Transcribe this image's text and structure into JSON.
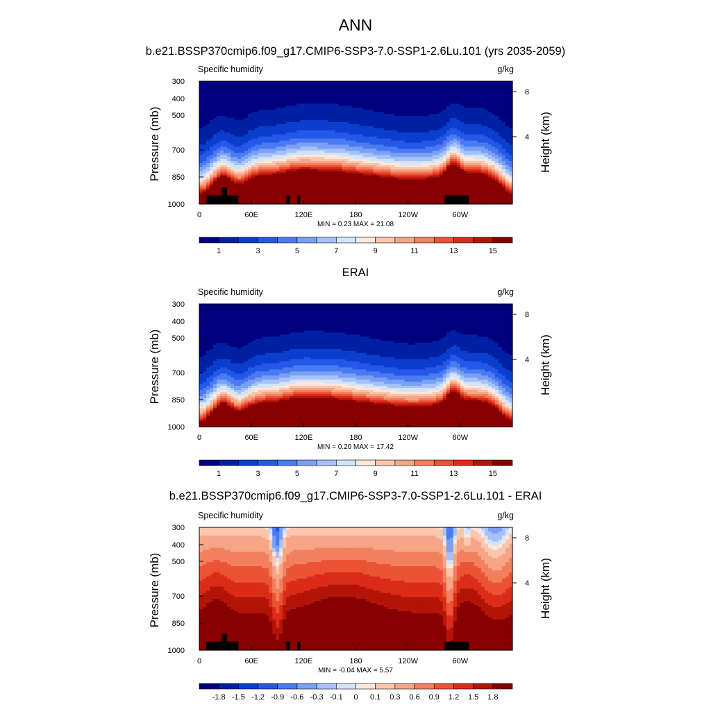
{
  "page": {
    "title": "ANN"
  },
  "colors": {
    "abs_scale": [
      "#00007f",
      "#0020a4",
      "#0b3ecc",
      "#2458e8",
      "#4a7bf2",
      "#7aa0f5",
      "#a7c2f8",
      "#d2e4fc",
      "#fde7d8",
      "#fac6ae",
      "#f6a586",
      "#f27f5e",
      "#ec5335",
      "#db2c18",
      "#b41408",
      "#860000"
    ],
    "diff_scale": [
      "#00007f",
      "#0020a4",
      "#0b3ecc",
      "#2458e8",
      "#4a7bf2",
      "#7aa0f5",
      "#a7c2f8",
      "#d2e4fc",
      "#fde7d8",
      "#fac6ae",
      "#f6a586",
      "#f27f5e",
      "#ec5335",
      "#db2c18",
      "#b41408",
      "#860000"
    ],
    "topography": "#000000"
  },
  "chart_data": [
    {
      "type": "heatmap",
      "title": "b.e21.BSSP370cmip6.f09_g17.CMIP6-SSP3-7.0-SSP1-2.6Lu.101 (yrs 2035-2059)",
      "variable": "Specific humidity",
      "units": "g/kg",
      "ylabel": "Pressure (mb)",
      "ylabel_right": "Height (km)",
      "x_ticks": [
        "0",
        "60E",
        "120E",
        "180",
        "120W",
        "60W"
      ],
      "y_ticks": [
        "300",
        "400",
        "500",
        "700",
        "850",
        "1000"
      ],
      "y_ticks_right": [
        "8",
        "4"
      ],
      "xlim": [
        0,
        360
      ],
      "ylim": [
        1000,
        300
      ],
      "stats": "MIN =   0.23  MAX =  21.08",
      "colorbar_labels": [
        "1",
        "3",
        "5",
        "7",
        "9",
        "11",
        "13",
        "15"
      ],
      "field": "model",
      "mask": true
    },
    {
      "type": "heatmap",
      "title": "ERAI",
      "variable": "Specific humidity",
      "units": "g/kg",
      "ylabel": "Pressure (mb)",
      "ylabel_right": "Height (km)",
      "x_ticks": [
        "0",
        "60E",
        "120E",
        "180",
        "120W",
        "60W"
      ],
      "y_ticks": [
        "300",
        "400",
        "500",
        "700",
        "850",
        "1000"
      ],
      "y_ticks_right": [
        "8",
        "4"
      ],
      "xlim": [
        0,
        360
      ],
      "ylim": [
        1000,
        300
      ],
      "stats": "MIN =   0.20  MAX =  17.42",
      "colorbar_labels": [
        "1",
        "3",
        "5",
        "7",
        "9",
        "11",
        "13",
        "15"
      ],
      "field": "obs",
      "mask": false
    },
    {
      "type": "heatmap",
      "title": "b.e21.BSSP370cmip6.f09_g17.CMIP6-SSP3-7.0-SSP1-2.6Lu.101 - ERAI",
      "variable": "Specific humidity",
      "units": "g/kg",
      "ylabel": "Pressure (mb)",
      "ylabel_right": "Height (km)",
      "x_ticks": [
        "0",
        "60E",
        "120E",
        "180",
        "120W",
        "60W"
      ],
      "y_ticks": [
        "300",
        "400",
        "500",
        "700",
        "850",
        "1000"
      ],
      "y_ticks_right": [
        "8",
        "4"
      ],
      "xlim": [
        0,
        360
      ],
      "ylim": [
        1000,
        300
      ],
      "stats": "MIN =  -0.04  MAX =   5.57",
      "colorbar_labels": [
        "-1.8",
        "-1.5",
        "-1.2",
        "-0.9",
        "-0.6",
        "-0.3",
        "-0.1",
        "0",
        "0.1",
        "0.3",
        "0.6",
        "0.9",
        "1.2",
        "1.5",
        "1.8"
      ],
      "field": "diff",
      "mask": true
    }
  ]
}
